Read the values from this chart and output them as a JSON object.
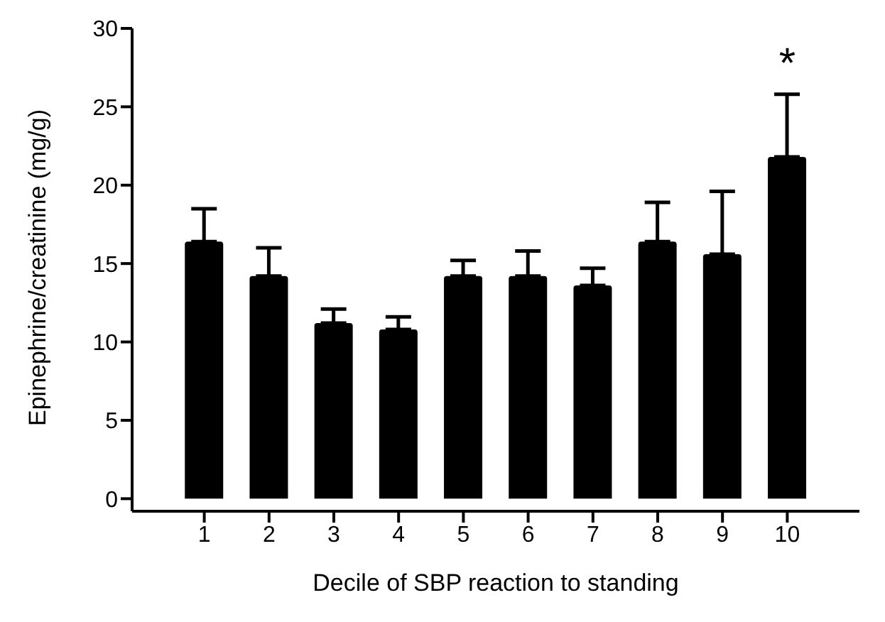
{
  "chart_data": {
    "type": "bar",
    "xlabel": "Decile of SBP reaction to standing",
    "ylabel": "Epinephrine/creatinine (mg/g)",
    "categories": [
      "1",
      "2",
      "3",
      "4",
      "5",
      "6",
      "7",
      "8",
      "9",
      "10"
    ],
    "values": [
      16.4,
      14.2,
      11.2,
      10.8,
      14.2,
      14.2,
      13.6,
      16.4,
      15.6,
      21.8
    ],
    "errors": [
      [
        16.4,
        18.5
      ],
      [
        14.2,
        16.0
      ],
      [
        11.2,
        12.1
      ],
      [
        10.8,
        11.6
      ],
      [
        14.2,
        15.2
      ],
      [
        14.2,
        15.8
      ],
      [
        13.6,
        14.7
      ],
      [
        16.4,
        18.9
      ],
      [
        15.6,
        19.6
      ],
      [
        21.8,
        25.8
      ]
    ],
    "color": "#000000",
    "ylim": [
      -0.8,
      30
    ],
    "yticks": [
      0,
      5,
      10,
      15,
      20,
      25,
      30
    ],
    "annotations": [
      "*"
    ],
    "grid": false,
    "legend": false
  }
}
